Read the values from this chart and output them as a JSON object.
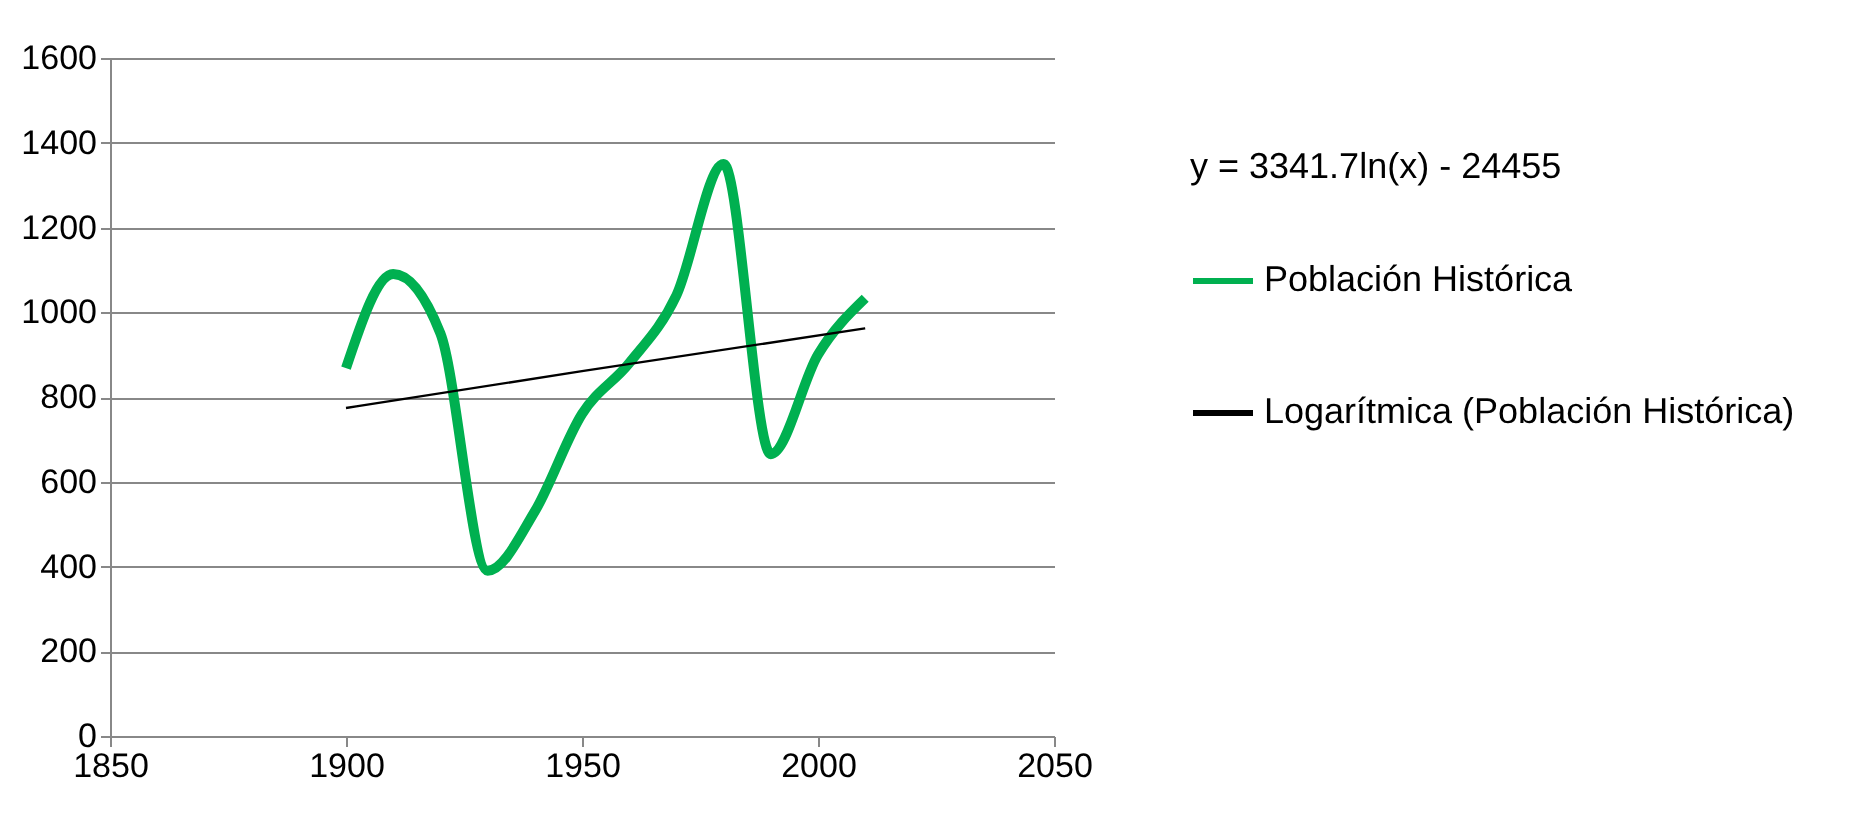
{
  "chart_data": {
    "type": "line",
    "xlim": [
      1850,
      2050
    ],
    "xticks": [
      1850,
      1900,
      1950,
      2000,
      2050
    ],
    "ylim": [
      0,
      1600
    ],
    "yticks": [
      0,
      200,
      400,
      600,
      800,
      1000,
      1200,
      1400,
      1600
    ],
    "grid": "y",
    "legend": "right",
    "marker": "none",
    "line_style": "solid",
    "annotations": [
      "y = 3341.7ln(x) - 24455"
    ],
    "series": [
      {
        "name": "Población Histórica",
        "color": "#00b050",
        "x": [
          1900,
          1910,
          1920,
          1930,
          1940,
          1950,
          1960,
          1970,
          1980,
          1990,
          2000,
          2010
        ],
        "values": [
          868,
          1090,
          950,
          390,
          530,
          760,
          880,
          1040,
          1350,
          665,
          900,
          1033
        ]
      },
      {
        "name": "Logarítmica (Población Histórica)",
        "color": "#000000",
        "x": [
          1900,
          1950,
          2010
        ],
        "values": [
          774,
          861,
          962
        ]
      }
    ]
  }
}
